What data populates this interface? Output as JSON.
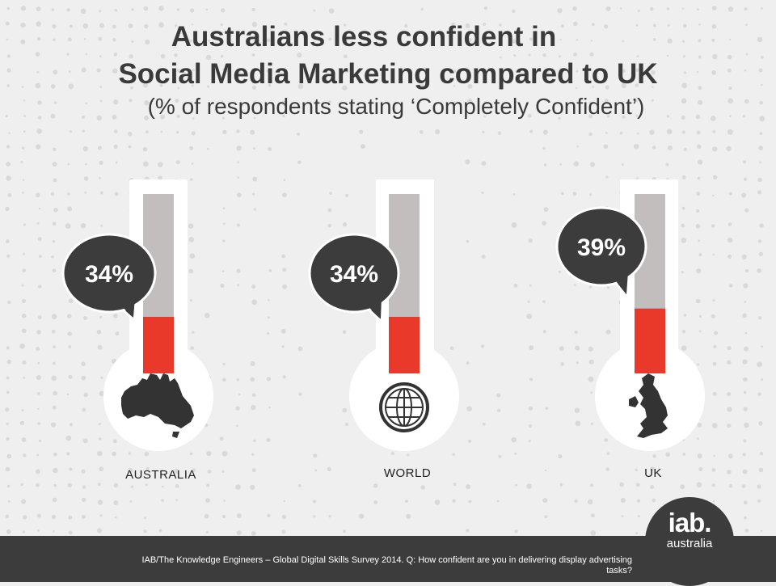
{
  "title_line1": "Australians less confident in",
  "title_line2": "Social Media Marketing compared to UK",
  "subtitle": "(% of respondents stating ‘Completely Confident’)",
  "colors": {
    "fill": "#e8392a",
    "empty": "#c3bebe",
    "bubble": "#3c3c3c",
    "footer": "#3c3c3c"
  },
  "chart_data": {
    "type": "bar",
    "title": "Australians less confident in Social Media Marketing compared to UK",
    "subtitle": "(% of respondents stating ‘Completely Confident’)",
    "categories": [
      "AUSTRALIA",
      "WORLD",
      "UK"
    ],
    "values": [
      34,
      34,
      39
    ],
    "value_labels": [
      "34%",
      "34%",
      "39%"
    ],
    "icons": [
      "australia-map-icon",
      "globe-icon",
      "uk-map-icon"
    ],
    "unit": "%"
  },
  "source_text": "IAB/The Knowledge Engineers – Global Digital Skills Survey 2014. Q: How confident are you in delivering display advertising tasks?",
  "logo": {
    "main": "iab.",
    "sub": "australia"
  }
}
